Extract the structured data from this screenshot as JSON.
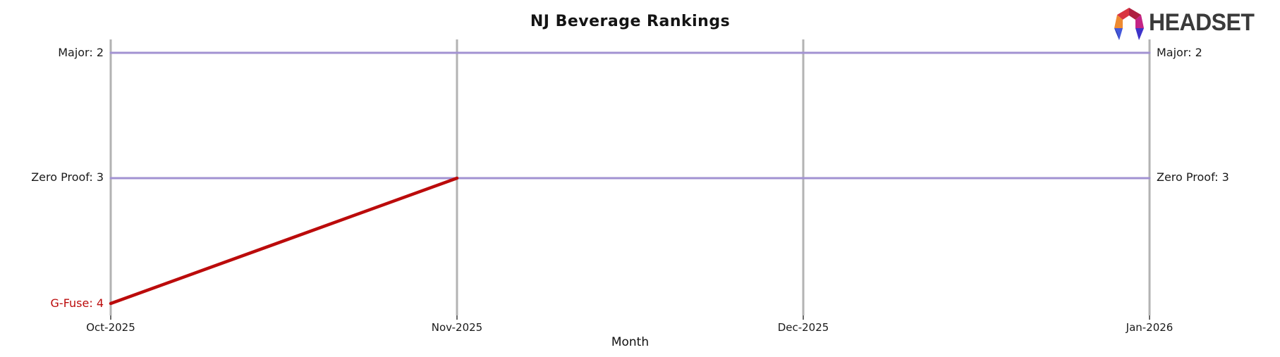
{
  "title": "NJ Beverage Rankings",
  "logo": {
    "text": "HEADSET",
    "icon": "headset-faceted-hexagon"
  },
  "labels": {
    "left": [
      {
        "text": "Major: 2",
        "rank": 2
      },
      {
        "text": "Zero Proof: 3",
        "rank": 3
      },
      {
        "text": "G-Fuse: 4",
        "rank": 4
      }
    ],
    "right": [
      {
        "text": "Major: 2",
        "rank": 2
      },
      {
        "text": "Zero Proof: 3",
        "rank": 3
      }
    ]
  },
  "colors": {
    "line_purple": "#a292d2",
    "line_red": "#bb0b0b",
    "gridline": "#b3b3b3",
    "tick": "#6b6b6b",
    "text": "#1a1a1a",
    "title_text": "#141414",
    "logo_text": "#3a3a3a"
  },
  "chart_data": {
    "type": "line",
    "title": "NJ Beverage Rankings",
    "xlabel": "Month",
    "ylabel": "",
    "x": [
      "Oct-2025",
      "Nov-2025",
      "Dec-2025",
      "Jan-2026"
    ],
    "series": [
      {
        "name": "Major",
        "values": [
          2,
          2,
          2,
          2
        ],
        "color": "#a292d2",
        "line_width": 3
      },
      {
        "name": "Zero Proof",
        "values": [
          3,
          3,
          3,
          3
        ],
        "color": "#a292d2",
        "line_width": 3
      },
      {
        "name": "G-Fuse",
        "values": [
          4,
          3,
          null,
          null
        ],
        "color": "#bb0b0b",
        "line_width": 4.5
      }
    ],
    "y_axis": "rank (lower number = better), inverted scale, visible ranks 2-4",
    "ylim": [
      4.3,
      1.9
    ],
    "grid": "vertical-only",
    "legend": "inline start/end labels at line endpoints"
  }
}
